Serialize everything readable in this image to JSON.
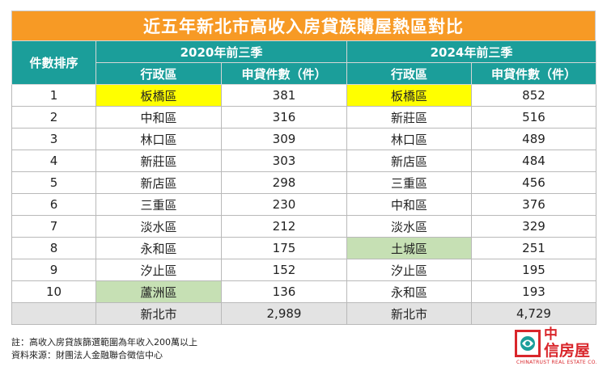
{
  "title": "近五年新北市高收入房貸族購屋熱區對比",
  "header": {
    "rank_label": "件數排序",
    "period_a": "2020年前三季",
    "period_b": "2024年前三季",
    "district_label": "行政區",
    "count_label": "申貸件數（件）"
  },
  "rows": [
    {
      "rank": "1",
      "a_district": "板橋區",
      "a_count": "381",
      "b_district": "板橋區",
      "b_count": "852"
    },
    {
      "rank": "2",
      "a_district": "中和區",
      "a_count": "316",
      "b_district": "新莊區",
      "b_count": "516"
    },
    {
      "rank": "3",
      "a_district": "林口區",
      "a_count": "309",
      "b_district": "林口區",
      "b_count": "489"
    },
    {
      "rank": "4",
      "a_district": "新莊區",
      "a_count": "303",
      "b_district": "新店區",
      "b_count": "484"
    },
    {
      "rank": "5",
      "a_district": "新店區",
      "a_count": "298",
      "b_district": "三重區",
      "b_count": "456"
    },
    {
      "rank": "6",
      "a_district": "三重區",
      "a_count": "230",
      "b_district": "中和區",
      "b_count": "376"
    },
    {
      "rank": "7",
      "a_district": "淡水區",
      "a_count": "212",
      "b_district": "淡水區",
      "b_count": "329"
    },
    {
      "rank": "8",
      "a_district": "永和區",
      "a_count": "175",
      "b_district": "土城區",
      "b_count": "251"
    },
    {
      "rank": "9",
      "a_district": "汐止區",
      "a_count": "152",
      "b_district": "汐止區",
      "b_count": "195"
    },
    {
      "rank": "10",
      "a_district": "蘆洲區",
      "a_count": "136",
      "b_district": "永和區",
      "b_count": "193"
    }
  ],
  "total": {
    "a_district": "新北市",
    "a_count": "2,989",
    "b_district": "新北市",
    "b_count": "4,729"
  },
  "notes": {
    "note": "註：高收入房貸族篩選範圍為年收入200萬以上",
    "source": "資料來源：財團法人金融聯合徵信中心"
  },
  "logo": {
    "line1": "中",
    "line2": "信房屋",
    "sub": "CHINATRUST REAL ESTATE CO."
  },
  "colors": {
    "title_bg": "#f79a25",
    "header_bg": "#1b9e9a",
    "highlight_yellow": "#ffff00",
    "highlight_green": "#c6e0b4",
    "total_bg": "#e3e3e3",
    "brand_red": "#d9262b"
  }
}
